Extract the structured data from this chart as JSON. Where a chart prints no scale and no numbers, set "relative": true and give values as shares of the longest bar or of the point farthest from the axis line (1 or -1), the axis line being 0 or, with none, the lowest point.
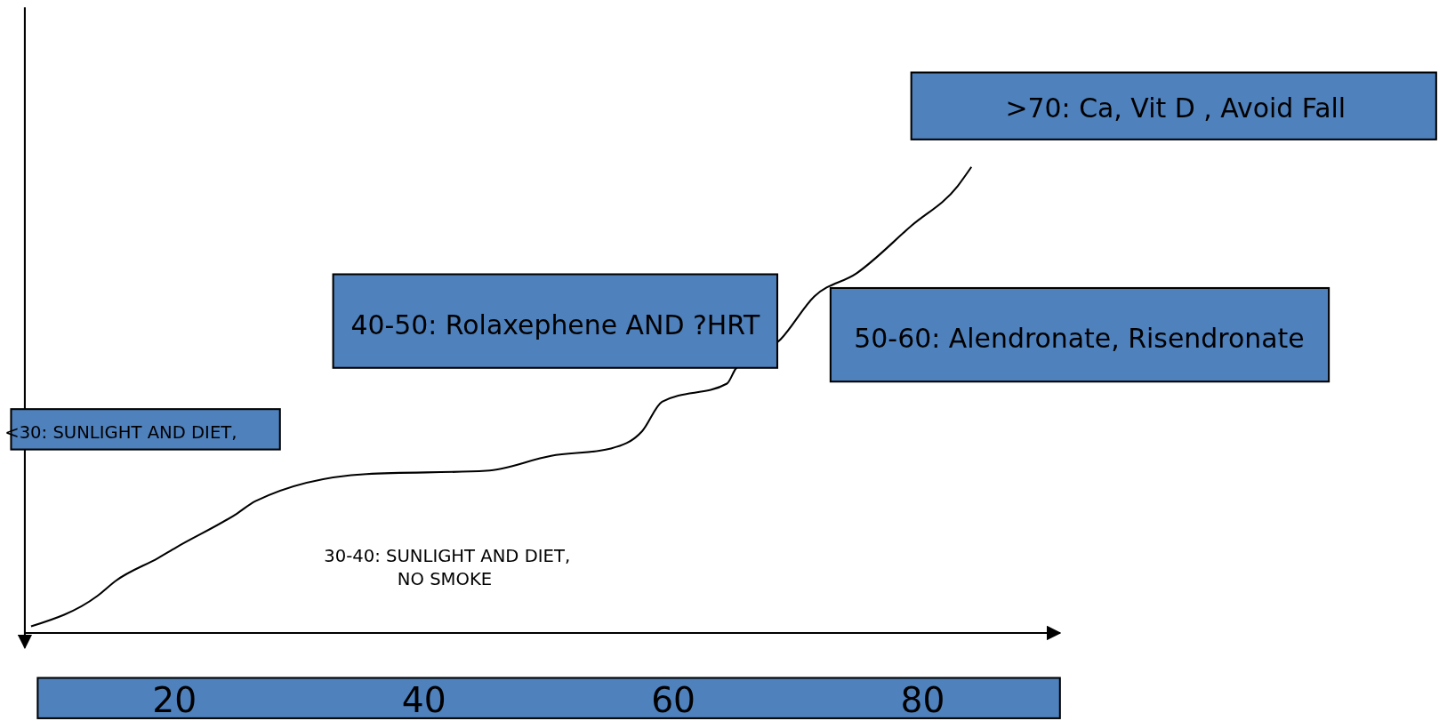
{
  "chart_data": {
    "type": "line",
    "relative": true,
    "tick_labels": "x",
    "xlim": [
      8,
      91
    ],
    "xticks": [
      20,
      40,
      60,
      80
    ],
    "x": [
      8.5,
      13.8,
      15.3,
      18.7,
      20.1,
      25.0,
      26.5,
      35.4,
      45.0,
      50.2,
      55.0,
      57.5,
      59.1,
      64.3,
      65.0,
      68.6,
      71.3,
      74.7,
      79.1,
      82.8,
      83.9
    ],
    "series": [
      {
        "color": "#000000",
        "values": [
          0.014,
          0.079,
          0.112,
          0.161,
          0.183,
          0.256,
          0.283,
          0.341,
          0.348,
          0.38,
          0.396,
          0.433,
          0.496,
          0.535,
          0.567,
          0.63,
          0.722,
          0.772,
          0.874,
          0.959,
          1.0
        ]
      }
    ],
    "annotations": [
      "<30: SUNLIGHT AND DIET,",
      "30-40: SUNLIGHT AND DIET,\nNO SMOKE",
      "40-50: Rolaxephene AND ?HRT",
      "50-60: Alendronate, Risendronate",
      ">70: Ca, Vit D , Avoid Fall"
    ]
  }
}
